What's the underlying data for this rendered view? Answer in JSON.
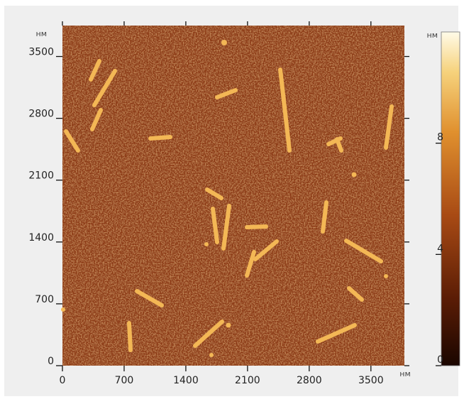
{
  "chart_data": {
    "type": "afm-image",
    "y_unit": "нм",
    "x_unit": "нм",
    "xlim": [
      0,
      3880
    ],
    "xticks": [
      0,
      700,
      1400,
      2100,
      2800,
      3500
    ],
    "ylim": [
      0,
      3850
    ],
    "yticks": [
      0,
      700,
      1400,
      2100,
      2800,
      3500
    ],
    "colorbar": {
      "unit": "нм",
      "lim": [
        0,
        12
      ],
      "ticks": [
        0,
        4,
        8
      ]
    }
  }
}
